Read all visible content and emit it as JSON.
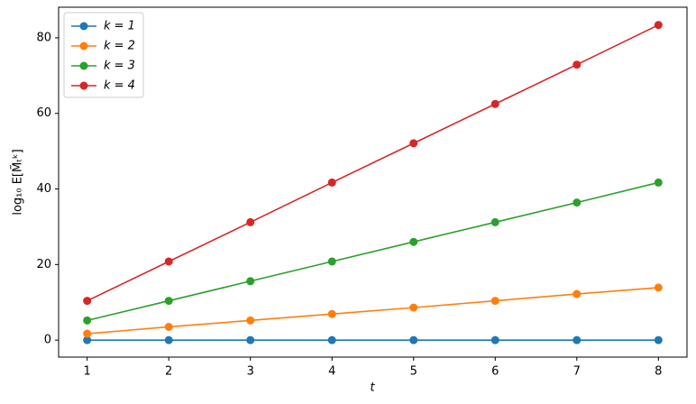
{
  "chart_data": {
    "type": "line",
    "x_label": "t",
    "y_label": "log₁₀ E[M̃ₜᵏ]",
    "x": [
      1,
      2,
      3,
      4,
      5,
      6,
      7,
      8
    ],
    "series": [
      {
        "name": "k = 1",
        "color": "#1f77b4",
        "values": [
          0,
          0,
          0,
          0,
          0,
          0,
          0,
          0
        ]
      },
      {
        "name": "k = 2",
        "color": "#ff7f0e",
        "values": [
          1.7,
          3.5,
          5.2,
          6.9,
          8.6,
          10.4,
          12.2,
          13.9
        ]
      },
      {
        "name": "k = 3",
        "color": "#2ca02c",
        "values": [
          5.2,
          10.4,
          15.6,
          20.8,
          26.0,
          31.2,
          36.4,
          41.7
        ]
      },
      {
        "name": "k = 4",
        "color": "#d62728",
        "values": [
          10.4,
          20.8,
          31.2,
          41.7,
          52.1,
          62.5,
          72.9,
          83.4
        ]
      }
    ],
    "xlim": [
      0.65,
      8.35
    ],
    "xticks": [
      1,
      2,
      3,
      4,
      5,
      6,
      7,
      8
    ],
    "ylim": [
      -4.5,
      88.1
    ],
    "yticks": [
      0,
      20,
      40,
      60,
      80
    ],
    "legend": "upper-left",
    "grid": false
  }
}
